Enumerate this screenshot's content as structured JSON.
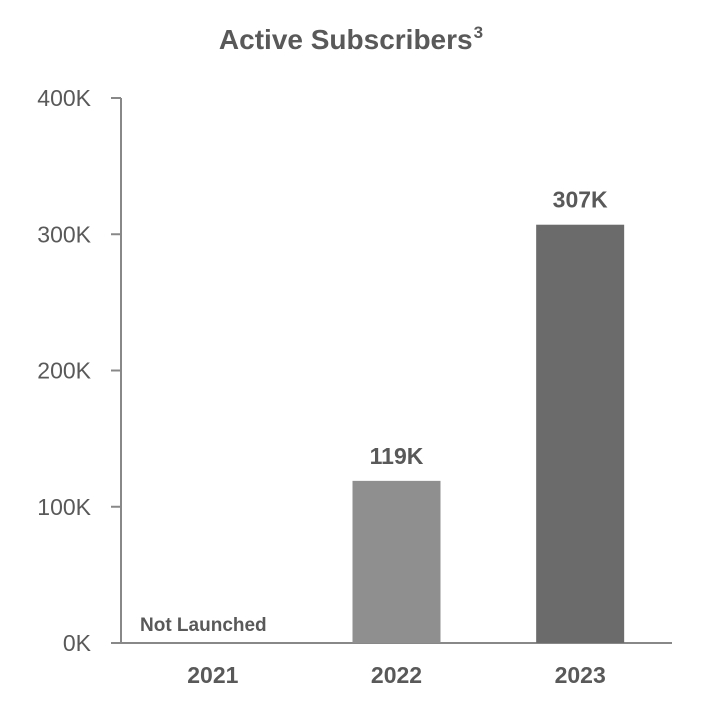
{
  "chart_data": {
    "type": "bar",
    "title": "Active Subscribers",
    "title_superscript": "3",
    "categories": [
      "2021",
      "2022",
      "2023"
    ],
    "values": [
      0,
      119000,
      307000
    ],
    "data_labels": [
      "Not Launched",
      "119K",
      "307K"
    ],
    "bar_colors": [
      "#8f8f8f",
      "#8f8f8f",
      "#6b6b6b"
    ],
    "ylim": [
      0,
      400000
    ],
    "yticks": [
      0,
      100000,
      200000,
      300000,
      400000
    ],
    "ytick_labels": [
      "0K",
      "100K",
      "200K",
      "300K",
      "400K"
    ],
    "xlabel": "",
    "ylabel": "",
    "grid": false,
    "legend": "none",
    "axis_color": "#888888",
    "text_color": "#595959"
  }
}
